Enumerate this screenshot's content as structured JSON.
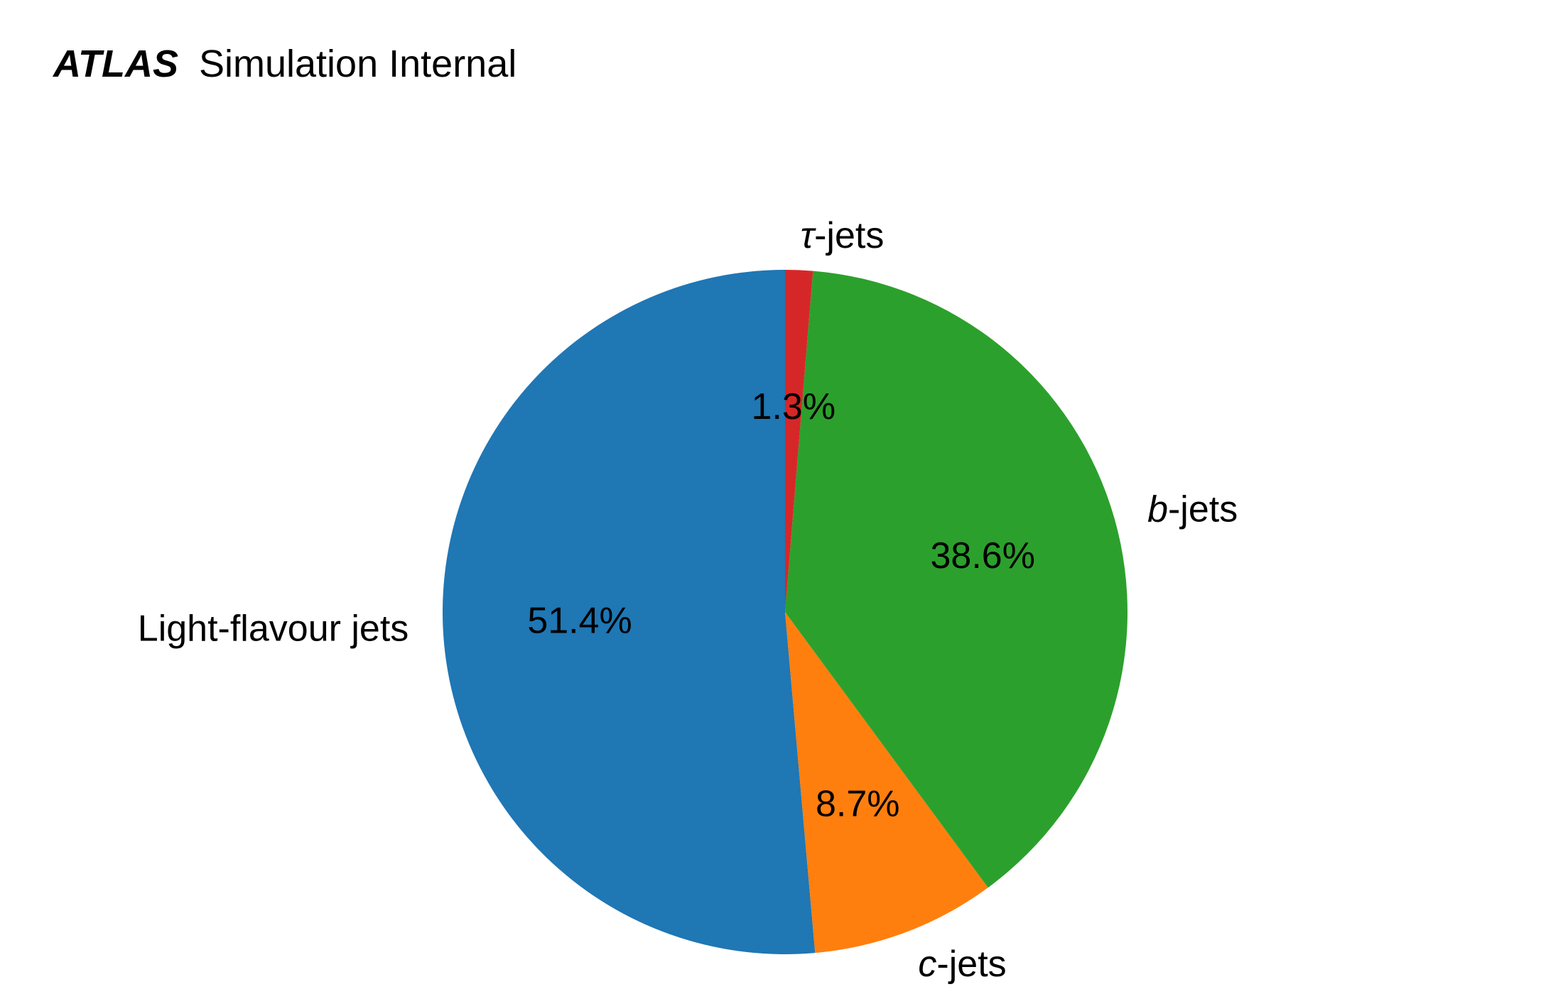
{
  "header": {
    "experiment": "ATLAS",
    "status": "Simulation Internal"
  },
  "chart_data": {
    "type": "pie",
    "start_angle_deg": 90,
    "direction": "counterclockwise",
    "slices": [
      {
        "name": "Light-flavour jets",
        "label_prefix": "",
        "label_italic": "",
        "label_suffix": "Light-flavour jets",
        "value": 51.4,
        "pct_label": "51.4%",
        "color": "#1f77b4"
      },
      {
        "name": "c-jets",
        "label_prefix": "",
        "label_italic": "c",
        "label_suffix": "-jets",
        "value": 8.7,
        "pct_label": "8.7%",
        "color": "#ff7f0e"
      },
      {
        "name": "b-jets",
        "label_prefix": "",
        "label_italic": "b",
        "label_suffix": "-jets",
        "value": 38.6,
        "pct_label": "38.6%",
        "color": "#2ca02c"
      },
      {
        "name": "τ-jets",
        "label_prefix": "",
        "label_italic": "τ",
        "label_suffix": "-jets",
        "value": 1.3,
        "pct_label": "1.3%",
        "color": "#d62728"
      }
    ]
  }
}
